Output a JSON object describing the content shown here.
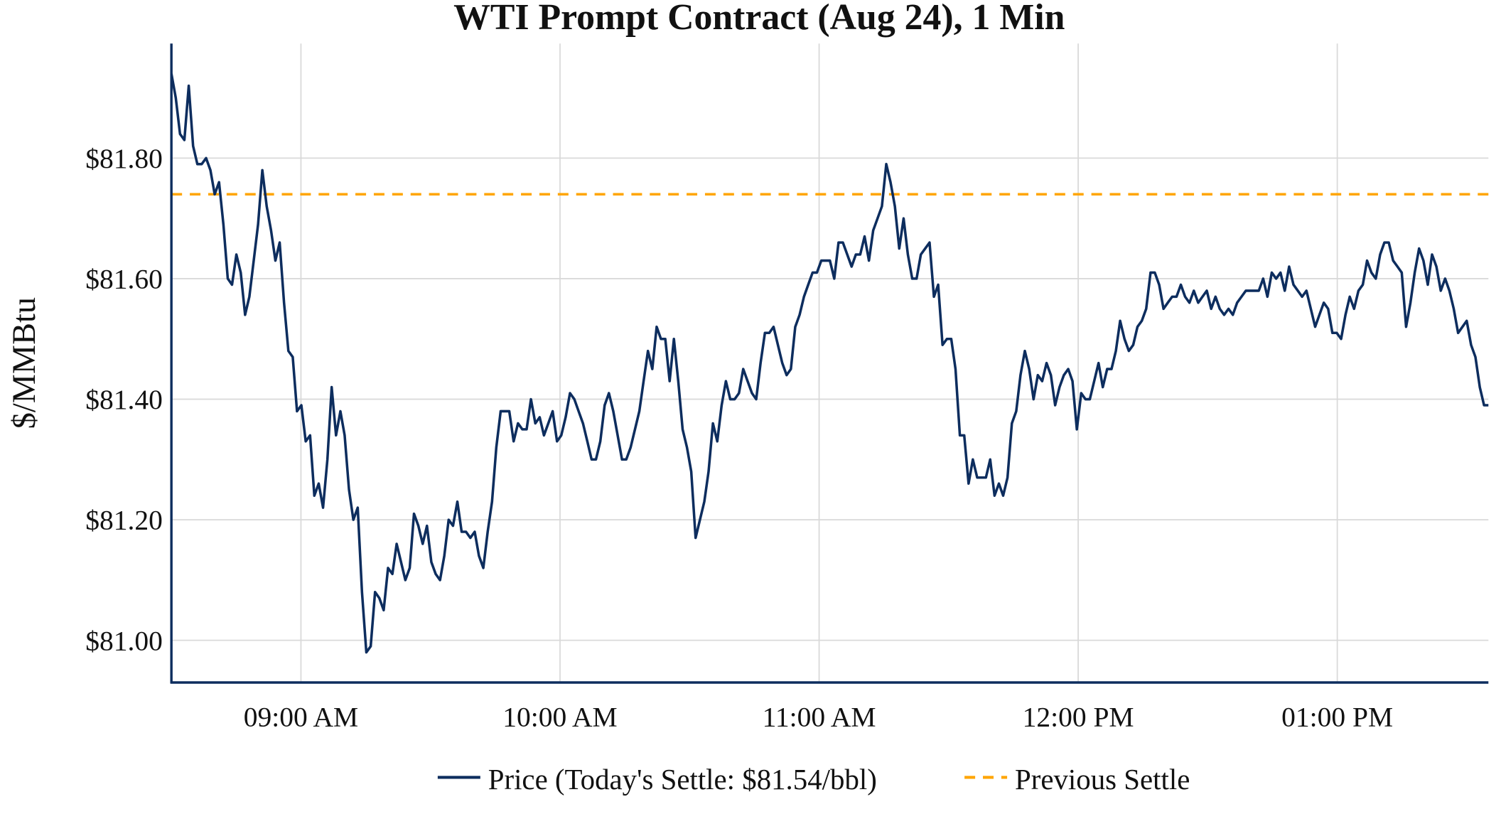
{
  "chart_data": {
    "type": "line",
    "title": "WTI Prompt Contract (Aug 24), 1 Min",
    "xlabel": "",
    "ylabel": "$/MMBtu",
    "x_range": [
      "08:30",
      "13:35"
    ],
    "x_ticks": [
      {
        "time": "09:00",
        "label": "09:00 AM"
      },
      {
        "time": "10:00",
        "label": "10:00 AM"
      },
      {
        "time": "11:00",
        "label": "11:00 AM"
      },
      {
        "time": "12:00",
        "label": "12:00 PM"
      },
      {
        "time": "13:00",
        "label": "01:00 PM"
      }
    ],
    "ylim": [
      80.93,
      81.99
    ],
    "y_ticks": [
      {
        "value": 81.0,
        "label": "$81.00"
      },
      {
        "value": 81.2,
        "label": "$81.20"
      },
      {
        "value": 81.4,
        "label": "$81.40"
      },
      {
        "value": 81.6,
        "label": "$81.60"
      },
      {
        "value": 81.8,
        "label": "$81.80"
      }
    ],
    "grid": true,
    "legend_position": "bottom",
    "series": [
      {
        "name": "Price (Today's Settle: $81.54/bbl)",
        "color": "#0d2d5e",
        "style": "solid",
        "values": [
          81.94,
          81.9,
          81.84,
          81.83,
          81.92,
          81.82,
          81.79,
          81.79,
          81.8,
          81.78,
          81.74,
          81.76,
          81.69,
          81.6,
          81.59,
          81.64,
          81.61,
          81.54,
          81.57,
          81.63,
          81.69,
          81.78,
          81.72,
          81.68,
          81.63,
          81.66,
          81.56,
          81.48,
          81.47,
          81.38,
          81.39,
          81.33,
          81.34,
          81.24,
          81.26,
          81.22,
          81.3,
          81.42,
          81.34,
          81.38,
          81.34,
          81.25,
          81.2,
          81.22,
          81.08,
          80.98,
          80.99,
          81.08,
          81.07,
          81.05,
          81.12,
          81.11,
          81.16,
          81.13,
          81.1,
          81.12,
          81.21,
          81.19,
          81.16,
          81.19,
          81.13,
          81.11,
          81.1,
          81.14,
          81.2,
          81.19,
          81.23,
          81.18,
          81.18,
          81.17,
          81.18,
          81.14,
          81.12,
          81.18,
          81.23,
          81.32,
          81.38,
          81.38,
          81.38,
          81.33,
          81.36,
          81.35,
          81.35,
          81.4,
          81.36,
          81.37,
          81.34,
          81.36,
          81.38,
          81.33,
          81.34,
          81.37,
          81.41,
          81.4,
          81.38,
          81.36,
          81.33,
          81.3,
          81.3,
          81.33,
          81.39,
          81.41,
          81.38,
          81.34,
          81.3,
          81.3,
          81.32,
          81.35,
          81.38,
          81.43,
          81.48,
          81.45,
          81.52,
          81.5,
          81.5,
          81.43,
          81.5,
          81.43,
          81.35,
          81.32,
          81.28,
          81.17,
          81.2,
          81.23,
          81.28,
          81.36,
          81.33,
          81.39,
          81.43,
          81.4,
          81.4,
          81.41,
          81.45,
          81.43,
          81.41,
          81.4,
          81.46,
          81.51,
          81.51,
          81.52,
          81.49,
          81.46,
          81.44,
          81.45,
          81.52,
          81.54,
          81.57,
          81.59,
          81.61,
          81.61,
          81.63,
          81.63,
          81.63,
          81.6,
          81.66,
          81.66,
          81.64,
          81.62,
          81.64,
          81.64,
          81.67,
          81.63,
          81.68,
          81.7,
          81.72,
          81.79,
          81.76,
          81.72,
          81.65,
          81.7,
          81.64,
          81.6,
          81.6,
          81.64,
          81.65,
          81.66,
          81.57,
          81.59,
          81.49,
          81.5,
          81.5,
          81.45,
          81.34,
          81.34,
          81.26,
          81.3,
          81.27,
          81.27,
          81.27,
          81.3,
          81.24,
          81.26,
          81.24,
          81.27,
          81.36,
          81.38,
          81.44,
          81.48,
          81.45,
          81.4,
          81.44,
          81.43,
          81.46,
          81.44,
          81.39,
          81.42,
          81.44,
          81.45,
          81.43,
          81.35,
          81.41,
          81.4,
          81.4,
          81.43,
          81.46,
          81.42,
          81.45,
          81.45,
          81.48,
          81.53,
          81.5,
          81.48,
          81.49,
          81.52,
          81.53,
          81.55,
          81.61,
          81.61,
          81.59,
          81.55,
          81.56,
          81.57,
          81.57,
          81.59,
          81.57,
          81.56,
          81.58,
          81.56,
          81.57,
          81.58,
          81.55,
          81.57,
          81.55,
          81.54,
          81.55,
          81.54,
          81.56,
          81.57,
          81.58,
          81.58,
          81.58,
          81.58,
          81.6,
          81.57,
          81.61,
          81.6,
          81.61,
          81.58,
          81.62,
          81.59,
          81.58,
          81.57,
          81.58,
          81.55,
          81.52,
          81.54,
          81.56,
          81.55,
          81.51,
          81.51,
          81.5,
          81.54,
          81.57,
          81.55,
          81.58,
          81.59,
          81.63,
          81.61,
          81.6,
          81.64,
          81.66,
          81.66,
          81.63,
          81.62,
          81.61,
          81.52,
          81.56,
          81.61,
          81.65,
          81.63,
          81.59,
          81.64,
          81.62,
          81.58,
          81.6,
          81.58,
          81.55,
          81.51,
          81.52,
          81.53,
          81.49,
          81.47,
          81.42,
          81.39,
          81.39
        ]
      },
      {
        "name": "Previous Settle",
        "color": "#ffa500",
        "style": "dashed",
        "value": 81.74
      }
    ]
  }
}
